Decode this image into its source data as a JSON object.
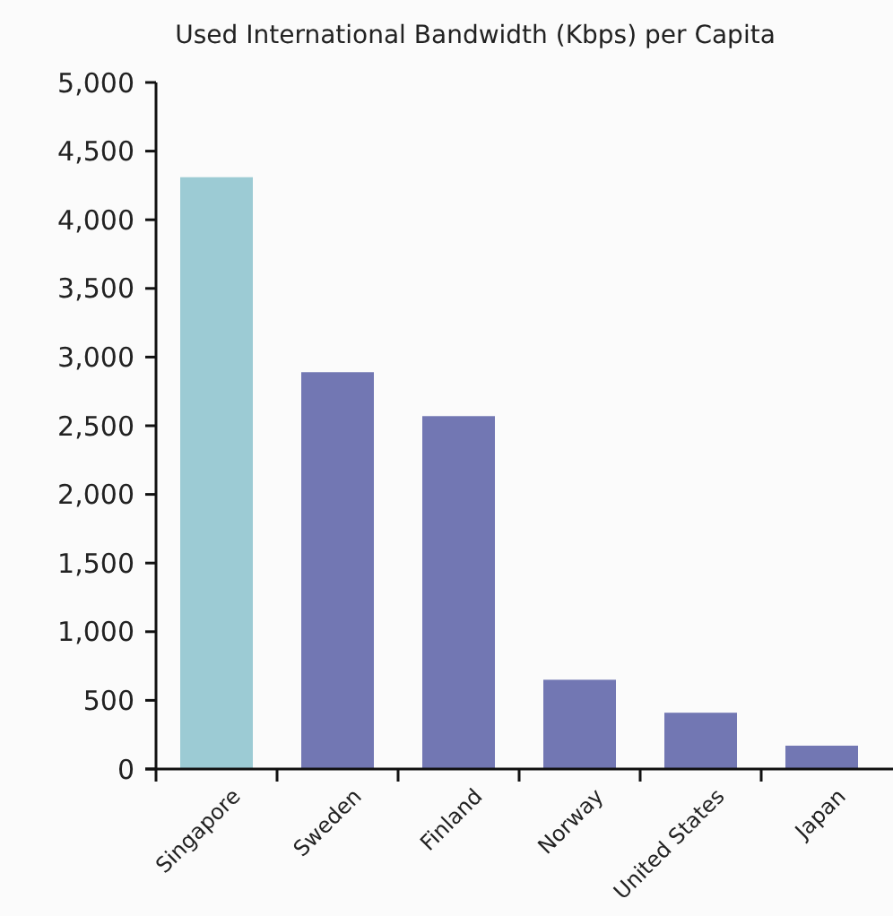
{
  "chart_data": {
    "type": "bar",
    "title": "Used International Bandwidth (Kbps) per Capita",
    "categories": [
      "Singapore",
      "Sweden",
      "Finland",
      "Norway",
      "United States",
      "Japan"
    ],
    "values": [
      4310,
      2890,
      2570,
      650,
      410,
      170
    ],
    "colors": [
      "#9ccbd4",
      "#7277b3",
      "#7277b3",
      "#7277b3",
      "#7277b3",
      "#7277b3"
    ],
    "ylim": [
      0,
      5000
    ],
    "yticks": [
      {
        "value": 0,
        "label": "0"
      },
      {
        "value": 500,
        "label": "500"
      },
      {
        "value": 1000,
        "label": "1,000"
      },
      {
        "value": 1500,
        "label": "1,500"
      },
      {
        "value": 2000,
        "label": "2,000"
      },
      {
        "value": 2500,
        "label": "2,500"
      },
      {
        "value": 3000,
        "label": "3,000"
      },
      {
        "value": 3500,
        "label": "3,500"
      },
      {
        "value": 4000,
        "label": "4,000"
      },
      {
        "value": 4500,
        "label": "4,500"
      },
      {
        "value": 5000,
        "label": "5,000"
      }
    ],
    "grid": false
  }
}
